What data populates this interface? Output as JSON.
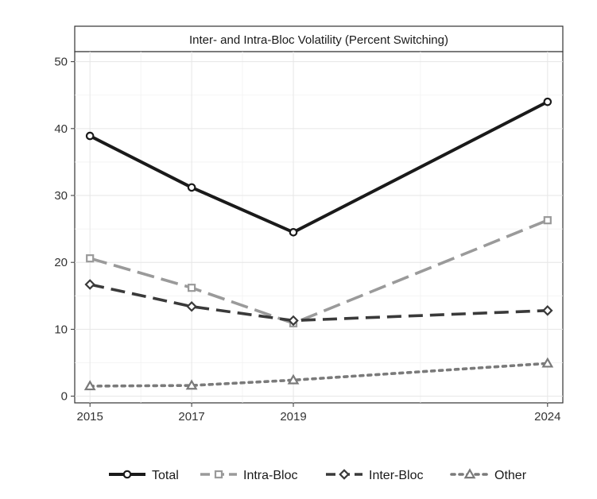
{
  "chart_data": {
    "type": "line",
    "title": "Inter- and Intra-Bloc Volatility (Percent Switching)",
    "xlabel": "",
    "ylabel": "",
    "x": [
      2015,
      2017,
      2019,
      2024
    ],
    "x_ticks": [
      "2015",
      "2017",
      "2019",
      "2024"
    ],
    "xlim": [
      2014.7,
      2024.3
    ],
    "ylim": [
      -1.0,
      51.5
    ],
    "y_ticks": [
      0,
      10,
      20,
      30,
      40,
      50
    ],
    "grid": true,
    "legend_position": "bottom",
    "series": [
      {
        "name": "Total",
        "values": [
          38.9,
          31.2,
          24.5,
          44.0
        ],
        "color": "#1a1a1a",
        "dash": "solid",
        "marker": "circle"
      },
      {
        "name": "Intra-Bloc",
        "values": [
          20.6,
          16.2,
          10.9,
          26.3
        ],
        "color": "#9a9a9a",
        "dash": "longdash",
        "marker": "square"
      },
      {
        "name": "Inter-Bloc",
        "values": [
          16.7,
          13.4,
          11.3,
          12.8
        ],
        "color": "#3a3a3a",
        "dash": "dash",
        "marker": "diamond"
      },
      {
        "name": "Other",
        "values": [
          1.5,
          1.6,
          2.4,
          4.9
        ],
        "color": "#7a7a7a",
        "dash": "dot",
        "marker": "triangle"
      }
    ]
  }
}
